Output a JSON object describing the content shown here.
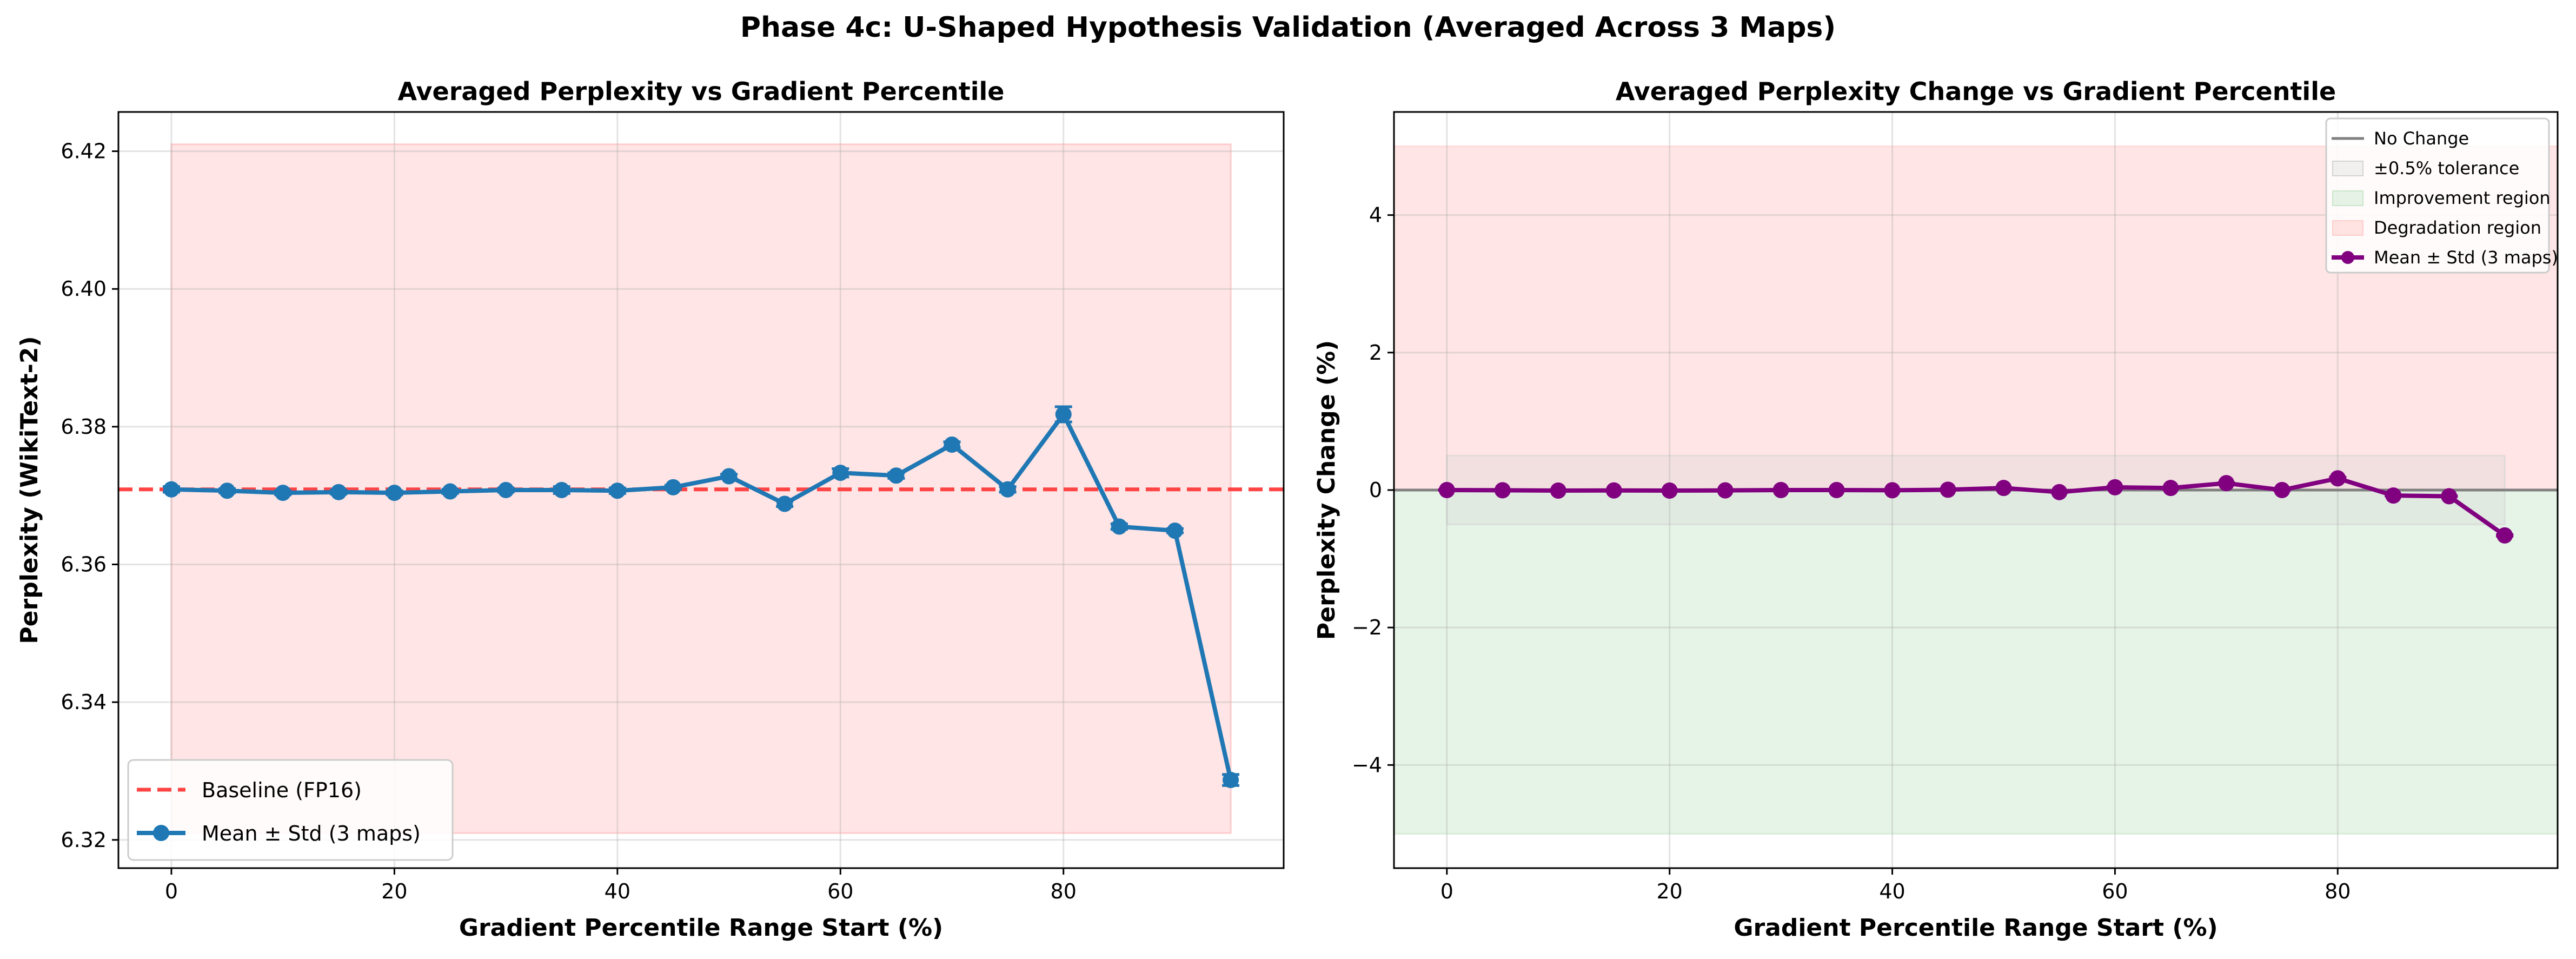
{
  "suptitle": "Phase 4c: U-Shaped Hypothesis Validation (Averaged Across 3 Maps)",
  "colors": {
    "mean_left": "#1f77b4",
    "mean_right": "#800080",
    "baseline": "#ff4444",
    "degradation": "#ffcccc",
    "improvement": "#c8e6c9",
    "tolerance": "#d3d3d3",
    "no_change": "#808080"
  },
  "chart_data": [
    {
      "type": "line",
      "title": "Averaged Perplexity vs Gradient Percentile",
      "xlabel": "Gradient Percentile Range Start (%)",
      "ylabel": "Perplexity (WikiText-2)",
      "xlim": [
        -4.75,
        99.75
      ],
      "ylim": [
        6.3159,
        6.4257
      ],
      "xticks": [
        0,
        20,
        40,
        60,
        80
      ],
      "yticks": [
        6.32,
        6.34,
        6.36,
        6.38,
        6.4,
        6.42
      ],
      "grid": true,
      "legend_position": "lower-left",
      "x": [
        0,
        5,
        10,
        15,
        20,
        25,
        30,
        35,
        40,
        45,
        50,
        55,
        60,
        65,
        70,
        75,
        80,
        85,
        90,
        95
      ],
      "series": [
        {
          "name": "Mean ± Std (3 maps)",
          "values": [
            6.3709,
            6.3707,
            6.3704,
            6.3705,
            6.3704,
            6.3706,
            6.3708,
            6.3708,
            6.3707,
            6.3712,
            6.3728,
            6.3688,
            6.3733,
            6.3729,
            6.3774,
            6.3709,
            6.3818,
            6.3655,
            6.3649,
            6.3287
          ],
          "std": [
            0.0004,
            0.0003,
            0.0003,
            0.0003,
            0.0003,
            0.0003,
            0.0003,
            0.0005,
            0.0004,
            0.0003,
            0.0003,
            0.0004,
            0.0006,
            0.0004,
            0.0004,
            0.0004,
            0.0011,
            0.0004,
            0.0003,
            0.0008
          ]
        }
      ],
      "baseline": {
        "name": "Baseline (FP16)",
        "value": 6.3709
      },
      "shaded_region": {
        "x": [
          0,
          95
        ],
        "y": [
          6.321,
          6.421
        ]
      }
    },
    {
      "type": "line",
      "title": "Averaged Perplexity Change vs Gradient Percentile",
      "xlabel": "Gradient Percentile Range Start (%)",
      "ylabel": "Perplexity Change (%)",
      "xlim": [
        -4.75,
        99.75
      ],
      "ylim": [
        -5.5,
        5.5
      ],
      "xticks": [
        0,
        20,
        40,
        60,
        80
      ],
      "yticks": [
        -4,
        -2,
        0,
        2,
        4
      ],
      "grid": true,
      "legend_position": "upper-right",
      "x": [
        0,
        5,
        10,
        15,
        20,
        25,
        30,
        35,
        40,
        45,
        50,
        55,
        60,
        65,
        70,
        75,
        80,
        85,
        90,
        95
      ],
      "series": [
        {
          "name": "Mean ± Std (3 maps)",
          "values": [
            0.0,
            -0.003,
            -0.008,
            -0.006,
            -0.008,
            -0.005,
            0.0,
            0.0,
            -0.003,
            0.005,
            0.03,
            -0.03,
            0.04,
            0.03,
            0.1,
            0.0,
            0.17,
            -0.08,
            -0.09,
            -0.66
          ],
          "std": [
            0.006,
            0.005,
            0.005,
            0.005,
            0.005,
            0.005,
            0.005,
            0.008,
            0.006,
            0.005,
            0.005,
            0.006,
            0.009,
            0.006,
            0.006,
            0.006,
            0.017,
            0.006,
            0.005,
            0.012
          ]
        }
      ],
      "no_change": {
        "name": "No Change",
        "value": 0
      },
      "regions": [
        {
          "name": "±0.5% tolerance",
          "x": [
            0,
            95
          ],
          "y": [
            -0.5,
            0.5
          ]
        },
        {
          "name": "Improvement region",
          "x": [
            -4.75,
            99.75
          ],
          "y": [
            -5,
            0
          ]
        },
        {
          "name": "Degradation region",
          "x": [
            -4.75,
            99.75
          ],
          "y": [
            0,
            5
          ]
        }
      ]
    }
  ]
}
